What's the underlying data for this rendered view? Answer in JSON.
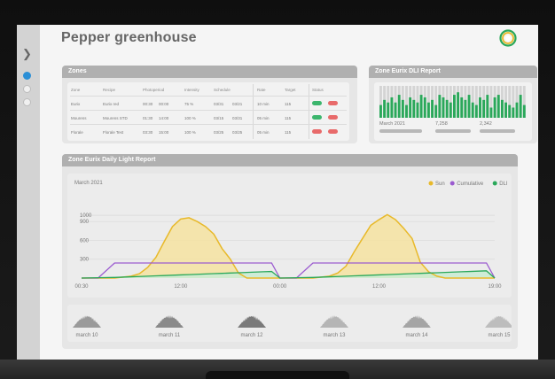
{
  "app": {
    "title": "Pepper greenhouse"
  },
  "colors": {
    "accent": "#2b8fd6",
    "sun": "#e8b92a",
    "cumulative": "#9b5bd0",
    "dli": "#2aa85a",
    "ok": "#3cb66d",
    "alert": "#e86a6a"
  },
  "sidebar": {
    "toggle_icon": "chevron-right-icon",
    "dots": 3,
    "active_index": 0
  },
  "zones": {
    "title": "Zones",
    "columns": [
      "Zone",
      "Recipe",
      "Photoperiod",
      "Intensity",
      "Schedule",
      "Rate",
      "Target",
      "Status"
    ],
    "rows": [
      {
        "zone": "Eurix",
        "recipe": "Eurix red",
        "photo_start": "00:30",
        "photo_end": "00:00",
        "intensity": "75 %",
        "sched_start": "03/31",
        "sched_end": "03/21",
        "rate": "10 min",
        "target": "115",
        "status": [
          "ok",
          "alert"
        ]
      },
      {
        "zone": "Mourens",
        "recipe": "Mourens STD",
        "photo_start": "01:30",
        "photo_end": "14:00",
        "intensity": "100 %",
        "sched_start": "03/15",
        "sched_end": "03/31",
        "rate": "05 min",
        "target": "115",
        "status": [
          "ok",
          "alert"
        ]
      },
      {
        "zone": "Florale",
        "recipe": "Florale Test",
        "photo_start": "03:30",
        "photo_end": "15:00",
        "intensity": "100 %",
        "sched_start": "03/25",
        "sched_end": "03/25",
        "rate": "05 min",
        "target": "115",
        "status": [
          "alert",
          "alert"
        ]
      }
    ]
  },
  "dli_report": {
    "title": "Zone Eurix DLI Report",
    "month": "March 2021",
    "stat1": "7,258",
    "stat2": "2,342",
    "bars": [
      0.5,
      0.7,
      0.6,
      0.8,
      0.6,
      0.9,
      0.7,
      0.5,
      0.8,
      0.7,
      0.6,
      0.9,
      0.8,
      0.6,
      0.7,
      0.5,
      0.9,
      0.8,
      0.7,
      0.6,
      0.9,
      1.0,
      0.8,
      0.7,
      0.9,
      0.6,
      0.5,
      0.8,
      0.7,
      0.9,
      0.4,
      0.8,
      0.9,
      0.7,
      0.6,
      0.5,
      0.4,
      0.6,
      0.9,
      0.5
    ],
    "bar_max": 1.0
  },
  "daily_report": {
    "title": "Zone Eurix Daily Light Report",
    "month": "March 2021",
    "legend": [
      "Sun",
      "Cumulative",
      "DLI"
    ]
  },
  "chart_data": {
    "type": "line",
    "title": "Zone Eurix Daily Light Report",
    "subtitle": "March 2021",
    "xlabel": "",
    "ylabel": "",
    "x_ticks": [
      "00:30",
      "12:00",
      "00:00",
      "12:00",
      "19:00"
    ],
    "y_ticks": [
      300,
      600,
      900,
      1000
    ],
    "ylim": [
      0,
      1100
    ],
    "legend_position": "top-right",
    "grid": true,
    "x": [
      0,
      2,
      4,
      6,
      7,
      8,
      9,
      10,
      11,
      12,
      13,
      14,
      15,
      16,
      17,
      18,
      19,
      20,
      21,
      22,
      23,
      24,
      26,
      28,
      30,
      31,
      32,
      33,
      34,
      35,
      36,
      37,
      38,
      39,
      40,
      41,
      42,
      43,
      44,
      45,
      46,
      47,
      48,
      49,
      50
    ],
    "series": [
      {
        "name": "Sun",
        "values": [
          0,
          0,
          0,
          30,
          70,
          170,
          330,
          580,
          820,
          940,
          960,
          900,
          820,
          700,
          470,
          300,
          80,
          0,
          0,
          0,
          0,
          0,
          0,
          0,
          30,
          80,
          190,
          420,
          630,
          840,
          930,
          1010,
          930,
          790,
          630,
          250,
          100,
          30,
          0,
          0,
          0,
          0,
          0,
          0,
          0
        ]
      },
      {
        "name": "Cumulative",
        "values": [
          0,
          0,
          240,
          240,
          240,
          240,
          240,
          240,
          240,
          240,
          240,
          240,
          240,
          240,
          240,
          240,
          240,
          240,
          240,
          240,
          240,
          0,
          0,
          240,
          240,
          240,
          240,
          240,
          240,
          240,
          240,
          240,
          240,
          240,
          240,
          240,
          240,
          240,
          240,
          240,
          240,
          240,
          240,
          240,
          0
        ]
      },
      {
        "name": "DLI",
        "values": [
          0,
          5,
          10,
          20,
          25,
          30,
          35,
          40,
          45,
          50,
          55,
          60,
          65,
          70,
          75,
          80,
          85,
          90,
          95,
          100,
          105,
          0,
          5,
          10,
          20,
          25,
          30,
          35,
          40,
          45,
          50,
          55,
          60,
          65,
          70,
          75,
          80,
          85,
          90,
          95,
          100,
          105,
          110,
          115,
          0
        ]
      }
    ]
  },
  "timeline": {
    "labels": [
      "march 10",
      "march 11",
      "march 12",
      "march 13",
      "march 14",
      "march 15"
    ]
  }
}
